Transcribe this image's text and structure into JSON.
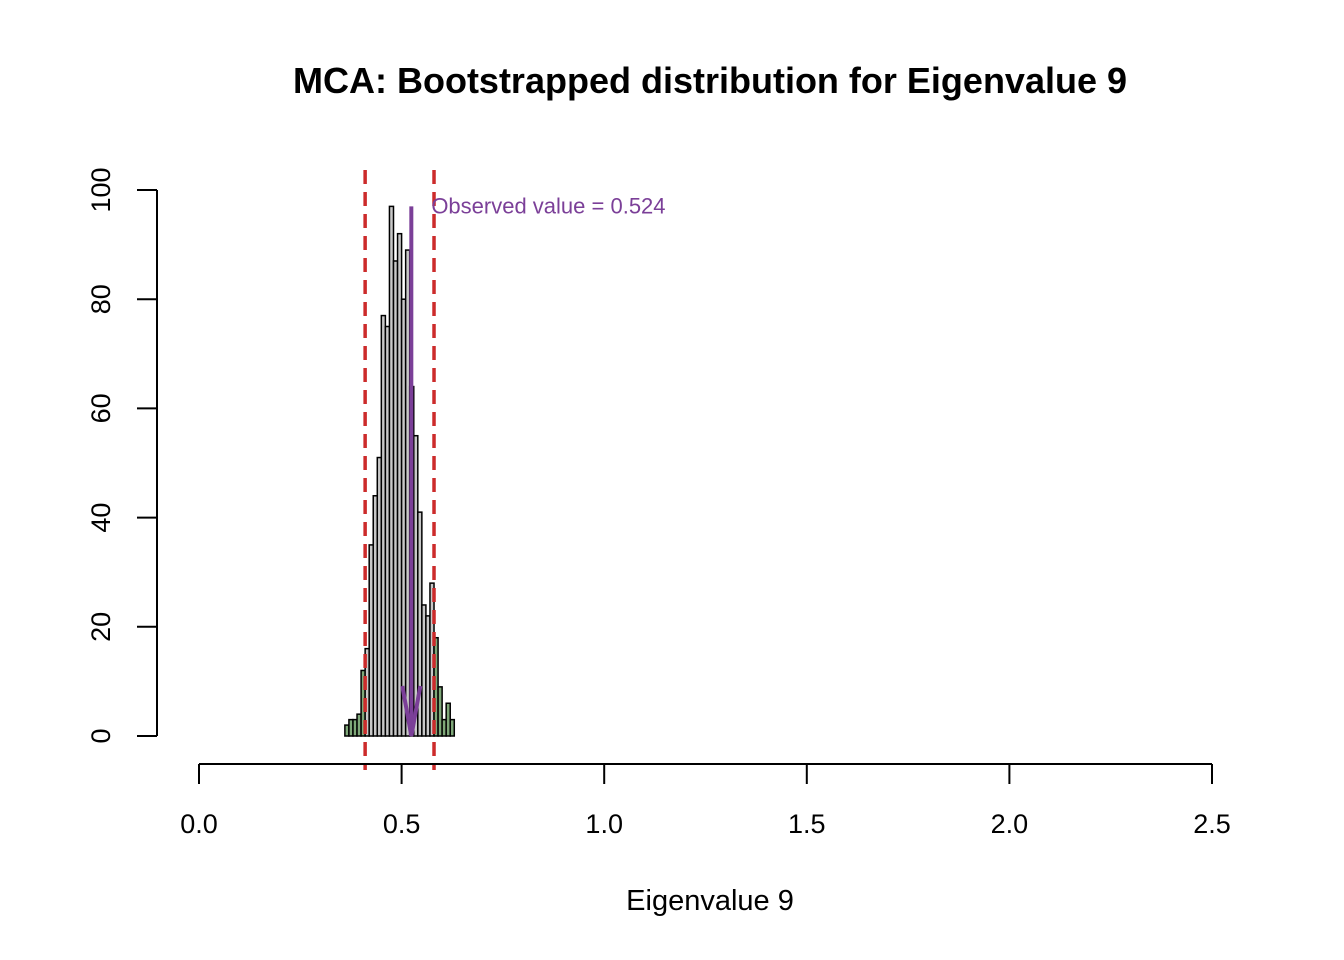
{
  "chart_data": {
    "type": "bar",
    "title": "MCA: Bootstrapped distribution for Eigenvalue 9",
    "xlabel": "Eigenvalue 9",
    "ylabel": "",
    "xlim": [
      0,
      2.5
    ],
    "ylim": [
      0,
      100
    ],
    "x_ticks": [
      "0.0",
      "0.5",
      "1.0",
      "1.5",
      "2.0",
      "2.5"
    ],
    "y_ticks": [
      "0",
      "20",
      "40",
      "60",
      "80",
      "100"
    ],
    "grid": false,
    "bin_width": 0.01,
    "bins": [
      {
        "x0": 0.36,
        "count": 2
      },
      {
        "x0": 0.37,
        "count": 3
      },
      {
        "x0": 0.38,
        "count": 3
      },
      {
        "x0": 0.39,
        "count": 4
      },
      {
        "x0": 0.4,
        "count": 12
      },
      {
        "x0": 0.41,
        "count": 16
      },
      {
        "x0": 0.42,
        "count": 35
      },
      {
        "x0": 0.43,
        "count": 44
      },
      {
        "x0": 0.44,
        "count": 51
      },
      {
        "x0": 0.45,
        "count": 77
      },
      {
        "x0": 0.46,
        "count": 75
      },
      {
        "x0": 0.47,
        "count": 97
      },
      {
        "x0": 0.48,
        "count": 87
      },
      {
        "x0": 0.49,
        "count": 92
      },
      {
        "x0": 0.5,
        "count": 80
      },
      {
        "x0": 0.51,
        "count": 89
      },
      {
        "x0": 0.52,
        "count": 64
      },
      {
        "x0": 0.53,
        "count": 55
      },
      {
        "x0": 0.54,
        "count": 41
      },
      {
        "x0": 0.55,
        "count": 24
      },
      {
        "x0": 0.56,
        "count": 22
      },
      {
        "x0": 0.57,
        "count": 28
      },
      {
        "x0": 0.58,
        "count": 18
      },
      {
        "x0": 0.59,
        "count": 9
      },
      {
        "x0": 0.6,
        "count": 3
      },
      {
        "x0": 0.61,
        "count": 6
      },
      {
        "x0": 0.62,
        "count": 3
      }
    ],
    "ci_lower": 0.41,
    "ci_upper": 0.58,
    "observed_value": 0.524,
    "annotation": "Observed value = 0.524",
    "colors": {
      "bar_inside": "#c8c8c8",
      "bar_outside": "#7fa879",
      "bar_border": "#000000",
      "ci_lines": "#cc2b2b",
      "observed": "#7b3f98"
    }
  }
}
